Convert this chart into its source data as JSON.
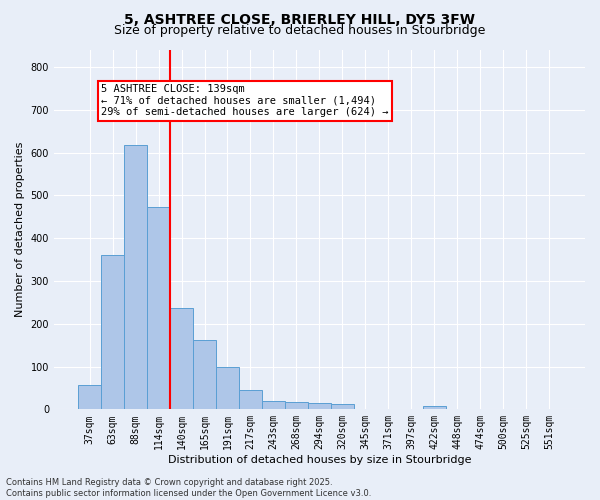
{
  "title_line1": "5, ASHTREE CLOSE, BRIERLEY HILL, DY5 3FW",
  "title_line2": "Size of property relative to detached houses in Stourbridge",
  "xlabel": "Distribution of detached houses by size in Stourbridge",
  "ylabel": "Number of detached properties",
  "bar_labels": [
    "37sqm",
    "63sqm",
    "88sqm",
    "114sqm",
    "140sqm",
    "165sqm",
    "191sqm",
    "217sqm",
    "243sqm",
    "268sqm",
    "294sqm",
    "320sqm",
    "345sqm",
    "371sqm",
    "397sqm",
    "422sqm",
    "448sqm",
    "474sqm",
    "500sqm",
    "525sqm",
    "551sqm"
  ],
  "bar_values": [
    57,
    360,
    617,
    473,
    238,
    162,
    98,
    45,
    20,
    18,
    15,
    12,
    0,
    0,
    0,
    8,
    0,
    0,
    0,
    0,
    0
  ],
  "bar_color": "#aec6e8",
  "bar_edge_color": "#5a9fd4",
  "vline_index": 4,
  "vline_color": "red",
  "annotation_text": "5 ASHTREE CLOSE: 139sqm\n← 71% of detached houses are smaller (1,494)\n29% of semi-detached houses are larger (624) →",
  "annotation_box_color": "white",
  "annotation_box_edge": "red",
  "ylim": [
    0,
    840
  ],
  "yticks": [
    0,
    100,
    200,
    300,
    400,
    500,
    600,
    700,
    800
  ],
  "background_color": "#e8eef8",
  "plot_bg_color": "#e8eef8",
  "footer_line1": "Contains HM Land Registry data © Crown copyright and database right 2025.",
  "footer_line2": "Contains public sector information licensed under the Open Government Licence v3.0.",
  "title_fontsize": 10,
  "subtitle_fontsize": 9,
  "tick_fontsize": 7,
  "ylabel_fontsize": 8,
  "xlabel_fontsize": 8,
  "annotation_fontsize": 7.5,
  "footer_fontsize": 6
}
